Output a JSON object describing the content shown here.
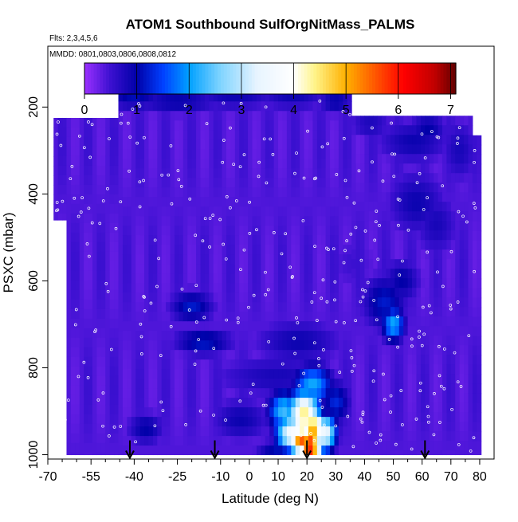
{
  "header": {
    "title": "ATOM1 Southbound SulfOrgNitMass_PALMS",
    "flights_note": "Flts: 2,3,4,5,6",
    "dates_note": "MMDD: 0801,0803,0806,0808,0812"
  },
  "chart_data": {
    "type": "heatmap",
    "title": "ATOM1 Southbound SulfOrgNitMass_PALMS",
    "xlabel": "Latitude (deg N)",
    "ylabel": "PSXC (mbar)",
    "xlim": [
      -70,
      85
    ],
    "ylim": [
      1010,
      60
    ],
    "y_reversed": true,
    "x_ticks": [
      -70,
      -55,
      -40,
      -25,
      -10,
      0,
      10,
      20,
      30,
      40,
      50,
      60,
      70,
      80
    ],
    "x_tick_labels": [
      "-70",
      "-55",
      "-40",
      "-25",
      "-10",
      "0",
      "10",
      "20",
      "30",
      "40",
      "50",
      "60",
      "70",
      "80"
    ],
    "x_minor_ticks": [
      -65,
      -60,
      -50,
      -45,
      -35,
      -30,
      -20,
      -15,
      -5,
      5,
      15,
      25,
      35,
      45,
      55,
      65,
      75
    ],
    "y_ticks": [
      200,
      400,
      600,
      800,
      1000
    ],
    "y_tick_labels": [
      "200",
      "400",
      "600",
      "800",
      "1000"
    ],
    "colorbar": {
      "min": 0,
      "max": 7.1,
      "ticks": [
        0,
        1,
        2,
        3,
        4,
        5,
        6,
        7
      ],
      "tick_labels": [
        "0",
        "1",
        "2",
        "3",
        "4",
        "5",
        "6",
        "7"
      ],
      "stops": [
        {
          "v": 0.0,
          "c": "#9b30ff"
        },
        {
          "v": 0.5,
          "c": "#3b10d0"
        },
        {
          "v": 1.0,
          "c": "#0000a8"
        },
        {
          "v": 1.5,
          "c": "#0040ff"
        },
        {
          "v": 2.0,
          "c": "#00a0ff"
        },
        {
          "v": 2.6,
          "c": "#80d4ff"
        },
        {
          "v": 3.3,
          "c": "#e8f4ff"
        },
        {
          "v": 4.0,
          "c": "#ffffff"
        },
        {
          "v": 4.4,
          "c": "#fff48a"
        },
        {
          "v": 5.0,
          "c": "#ffb000"
        },
        {
          "v": 5.6,
          "c": "#ff5000"
        },
        {
          "v": 6.1,
          "c": "#ff0000"
        },
        {
          "v": 6.7,
          "c": "#c00000"
        },
        {
          "v": 7.1,
          "c": "#600000"
        }
      ]
    },
    "domain_bounds": [
      {
        "lat": -68,
        "ptop": 225,
        "pbot": 460
      },
      {
        "lat": -64,
        "ptop": 225,
        "pbot": 1000
      },
      {
        "lat": -46,
        "ptop": 225,
        "pbot": 1000
      },
      {
        "lat": -45,
        "ptop": 165,
        "pbot": 1000
      },
      {
        "lat": 35,
        "ptop": 165,
        "pbot": 1000
      },
      {
        "lat": 36,
        "ptop": 220,
        "pbot": 1000
      },
      {
        "lat": 77,
        "ptop": 220,
        "pbot": 1000
      },
      {
        "lat": 78,
        "ptop": 265,
        "pbot": 1000
      },
      {
        "lat": 80,
        "ptop": 400,
        "pbot": 1000
      }
    ],
    "features": [
      {
        "lat": -40,
        "p": 180,
        "v": 1.1,
        "wl": 8,
        "wp": 20
      },
      {
        "lat": -25,
        "p": 185,
        "v": 1.0,
        "wl": 12,
        "wp": 25
      },
      {
        "lat": -5,
        "p": 180,
        "v": 0.9,
        "wl": 12,
        "wp": 20
      },
      {
        "lat": 15,
        "p": 180,
        "v": 0.9,
        "wl": 10,
        "wp": 20
      },
      {
        "lat": 30,
        "p": 185,
        "v": 1.0,
        "wl": 5,
        "wp": 25
      },
      {
        "lat": 42,
        "p": 240,
        "v": 0.8,
        "wl": 6,
        "wp": 25
      },
      {
        "lat": 57,
        "p": 280,
        "v": 0.9,
        "wl": 10,
        "wp": 40
      },
      {
        "lat": 62,
        "p": 250,
        "v": 1.0,
        "wl": 5,
        "wp": 30
      },
      {
        "lat": 73,
        "p": 300,
        "v": 0.8,
        "wl": 5,
        "wp": 60
      },
      {
        "lat": 58,
        "p": 420,
        "v": 0.9,
        "wl": 8,
        "wp": 60
      },
      {
        "lat": 65,
        "p": 470,
        "v": 0.8,
        "wl": 6,
        "wp": 60
      },
      {
        "lat": 36,
        "p": 560,
        "v": 0.5,
        "wl": 8,
        "wp": 60
      },
      {
        "lat": -20,
        "p": 660,
        "v": 1.2,
        "wl": 6,
        "wp": 30
      },
      {
        "lat": -16,
        "p": 740,
        "v": 1.2,
        "wl": 8,
        "wp": 25
      },
      {
        "lat": 17,
        "p": 740,
        "v": 0.9,
        "wl": 12,
        "wp": 40
      },
      {
        "lat": 47,
        "p": 650,
        "v": 1.2,
        "wl": 6,
        "wp": 50
      },
      {
        "lat": 50,
        "p": 700,
        "v": 2.1,
        "wl": 3,
        "wp": 30
      },
      {
        "lat": 53,
        "p": 600,
        "v": 1.0,
        "wl": 5,
        "wp": 40
      },
      {
        "lat": 22,
        "p": 840,
        "v": 2.1,
        "wl": 5,
        "wp": 35
      },
      {
        "lat": 10,
        "p": 820,
        "v": 0.8,
        "wl": 18,
        "wp": 40
      },
      {
        "lat": -3,
        "p": 920,
        "v": 0.9,
        "wl": 8,
        "wp": 40
      },
      {
        "lat": -36,
        "p": 940,
        "v": 1.0,
        "wl": 5,
        "wp": 30
      },
      {
        "lat": 12,
        "p": 900,
        "v": 2.3,
        "wl": 4,
        "wp": 35
      },
      {
        "lat": 19,
        "p": 910,
        "v": 4.5,
        "wl": 4,
        "wp": 40
      },
      {
        "lat": 15,
        "p": 950,
        "v": 3.8,
        "wl": 4,
        "wp": 30
      },
      {
        "lat": 18,
        "p": 965,
        "v": 5.6,
        "wl": 3,
        "wp": 25
      },
      {
        "lat": 21,
        "p": 980,
        "v": 6.3,
        "wl": 3,
        "wp": 25
      },
      {
        "lat": 22,
        "p": 940,
        "v": 5.2,
        "wl": 3,
        "wp": 30
      },
      {
        "lat": 26,
        "p": 950,
        "v": 3.6,
        "wl": 3,
        "wp": 30
      },
      {
        "lat": 30,
        "p": 880,
        "v": 1.3,
        "wl": 4,
        "wp": 40
      },
      {
        "lat": 10,
        "p": 990,
        "v": 1.1,
        "wl": 6,
        "wp": 20
      }
    ],
    "markers": [
      {
        "lat": -41.5,
        "p": 1000
      },
      {
        "lat": -12,
        "p": 1000
      },
      {
        "lat": 20,
        "p": 1000
      },
      {
        "lat": 61,
        "p": 1000
      }
    ]
  }
}
